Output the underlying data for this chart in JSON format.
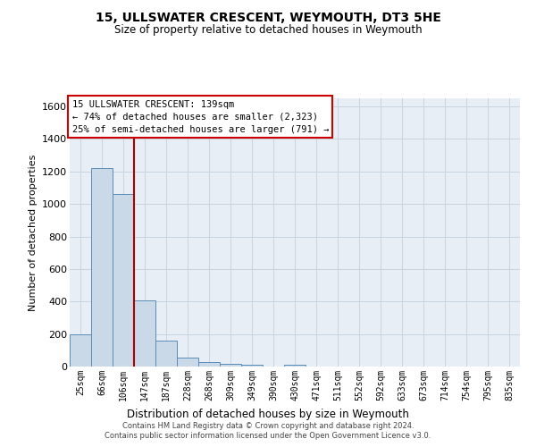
{
  "title": "15, ULLSWATER CRESCENT, WEYMOUTH, DT3 5HE",
  "subtitle": "Size of property relative to detached houses in Weymouth",
  "xlabel": "Distribution of detached houses by size in Weymouth",
  "ylabel": "Number of detached properties",
  "categories": [
    "25sqm",
    "66sqm",
    "106sqm",
    "147sqm",
    "187sqm",
    "228sqm",
    "268sqm",
    "309sqm",
    "349sqm",
    "390sqm",
    "430sqm",
    "471sqm",
    "511sqm",
    "552sqm",
    "592sqm",
    "633sqm",
    "673sqm",
    "714sqm",
    "754sqm",
    "795sqm",
    "835sqm"
  ],
  "values": [
    200,
    1220,
    1060,
    405,
    160,
    55,
    25,
    15,
    10,
    0,
    10,
    0,
    0,
    0,
    0,
    0,
    0,
    0,
    0,
    0,
    0
  ],
  "bar_color": "#c9d9e8",
  "bar_edge_color": "#5b8db8",
  "vline_color": "#aa0000",
  "annotation_text": "15 ULLSWATER CRESCENT: 139sqm\n← 74% of detached houses are smaller (2,323)\n25% of semi-detached houses are larger (791) →",
  "annotation_box_color": "#ffffff",
  "annotation_box_edge": "#cc0000",
  "ylim": [
    0,
    1650
  ],
  "yticks": [
    0,
    200,
    400,
    600,
    800,
    1000,
    1200,
    1400,
    1600
  ],
  "grid_color": "#c8d4e0",
  "background_color": "#e8eef5",
  "footer_line1": "Contains HM Land Registry data © Crown copyright and database right 2024.",
  "footer_line2": "Contains public sector information licensed under the Open Government Licence v3.0."
}
